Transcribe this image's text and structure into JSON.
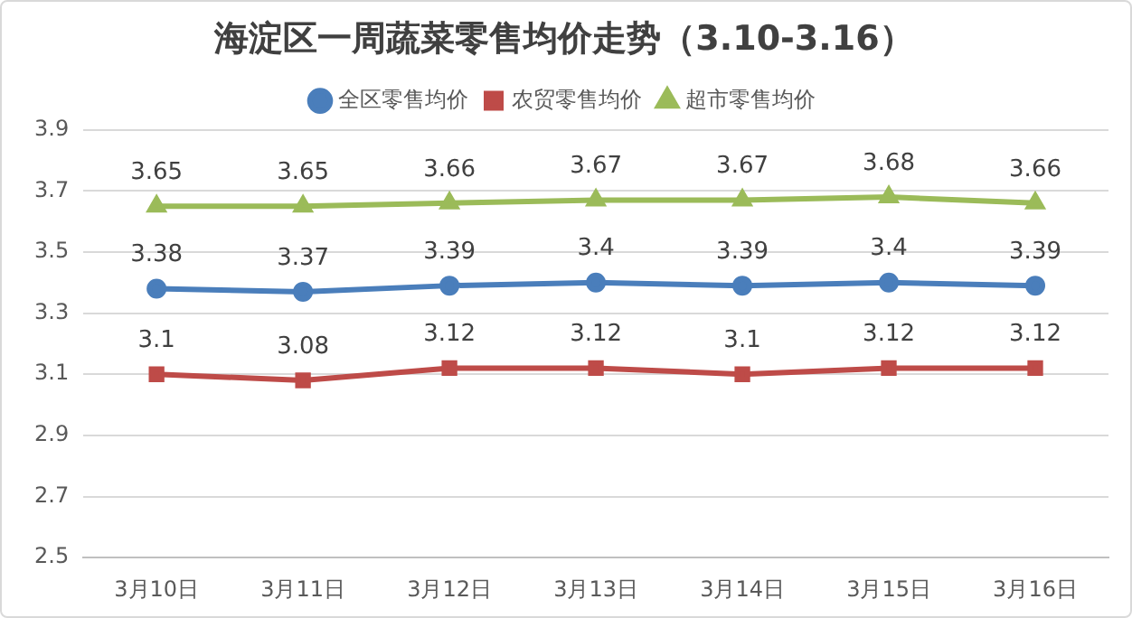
{
  "chart_data": {
    "type": "line",
    "title": "海淀区一周蔬菜零售均价走势（3.10-3.16）",
    "categories": [
      "3月10日",
      "3月11日",
      "3月12日",
      "3月13日",
      "3月14日",
      "3月15日",
      "3月16日"
    ],
    "series": [
      {
        "name": "全区零售均价",
        "color": "#4a7ebb",
        "marker": "circle",
        "values": [
          3.38,
          3.37,
          3.39,
          3.4,
          3.39,
          3.4,
          3.39
        ]
      },
      {
        "name": "农贸零售均价",
        "color": "#be4b48",
        "marker": "square",
        "values": [
          3.1,
          3.08,
          3.12,
          3.12,
          3.1,
          3.12,
          3.12
        ]
      },
      {
        "name": "超市零售均价",
        "color": "#9bbb59",
        "marker": "triangle",
        "values": [
          3.65,
          3.65,
          3.66,
          3.67,
          3.67,
          3.68,
          3.66
        ]
      }
    ],
    "ylim": [
      2.5,
      3.9
    ],
    "yticks": [
      2.5,
      2.7,
      2.9,
      3.1,
      3.3,
      3.5,
      3.7,
      3.9
    ],
    "grid": "y",
    "legend": "top",
    "data_labels": true,
    "line_style": "solid"
  }
}
